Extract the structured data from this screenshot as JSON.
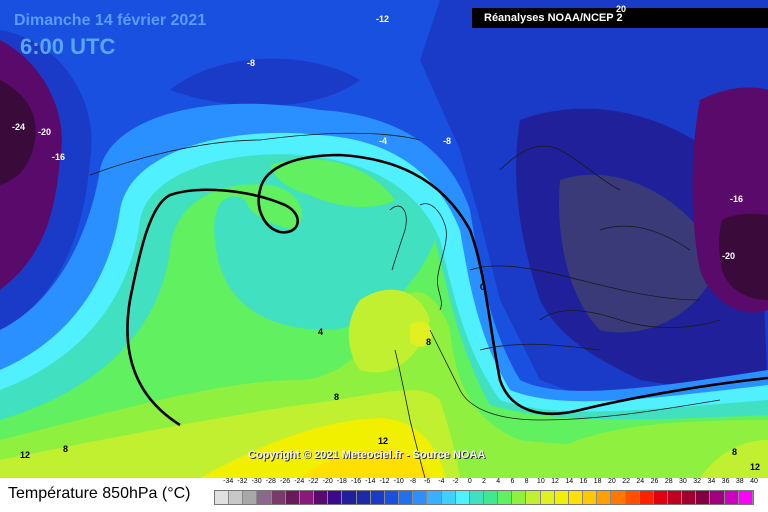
{
  "header": {
    "date": "Dimanche 14 février 2021",
    "time": "6:00 UTC",
    "source": "Réanalyses NOAA/NCEP 2",
    "source_corner": "20"
  },
  "copyright": "Copyright © 2021 Meteociel.fr - Source NOAA",
  "legend": {
    "title": "Température 850hPa (°C)",
    "ticks": [
      "-34",
      "-32",
      "-30",
      "-28",
      "-26",
      "-24",
      "-22",
      "-20",
      "-18",
      "-16",
      "-14",
      "-12",
      "-10",
      "-8",
      "-6",
      "-4",
      "-2",
      "0",
      "2",
      "4",
      "6",
      "8",
      "10",
      "12",
      "14",
      "16",
      "18",
      "20",
      "22",
      "24",
      "26",
      "28",
      "30",
      "32",
      "34",
      "36",
      "38",
      "40"
    ],
    "colors": [
      "#e0e0e0",
      "#c8c8c8",
      "#a8a8a8",
      "#8a6a8a",
      "#7a3a6a",
      "#6a1a5a",
      "#8a1a7a",
      "#5a0a6a",
      "#3a0a8a",
      "#20209a",
      "#1a2aa8",
      "#1a3ac8",
      "#1a50e0",
      "#2070f0",
      "#2a90ff",
      "#38b0ff",
      "#40d0ff",
      "#50f0ff",
      "#40e0c0",
      "#40e890",
      "#60f060",
      "#90f040",
      "#c0f030",
      "#e0f020",
      "#f0f000",
      "#ffe000",
      "#ffc800",
      "#ffa000",
      "#ff7800",
      "#ff5000",
      "#ff2000",
      "#e00010",
      "#c00020",
      "#a00030",
      "#800040",
      "#a00080",
      "#d000c0",
      "#ff00ff"
    ]
  },
  "isotherm_labels": {
    "n12": "-12",
    "n8": "-8",
    "n4": "-4",
    "n8b": "-8",
    "n24": "-24",
    "n20": "-20",
    "n16": "-16",
    "n16e": "-16",
    "n20e": "-20",
    "zero": "0",
    "p4": "4",
    "p8a": "8",
    "p8b": "8",
    "p8c": "8",
    "p12a": "12",
    "p12b": "12",
    "p12c": "12",
    "p8d": "8"
  }
}
